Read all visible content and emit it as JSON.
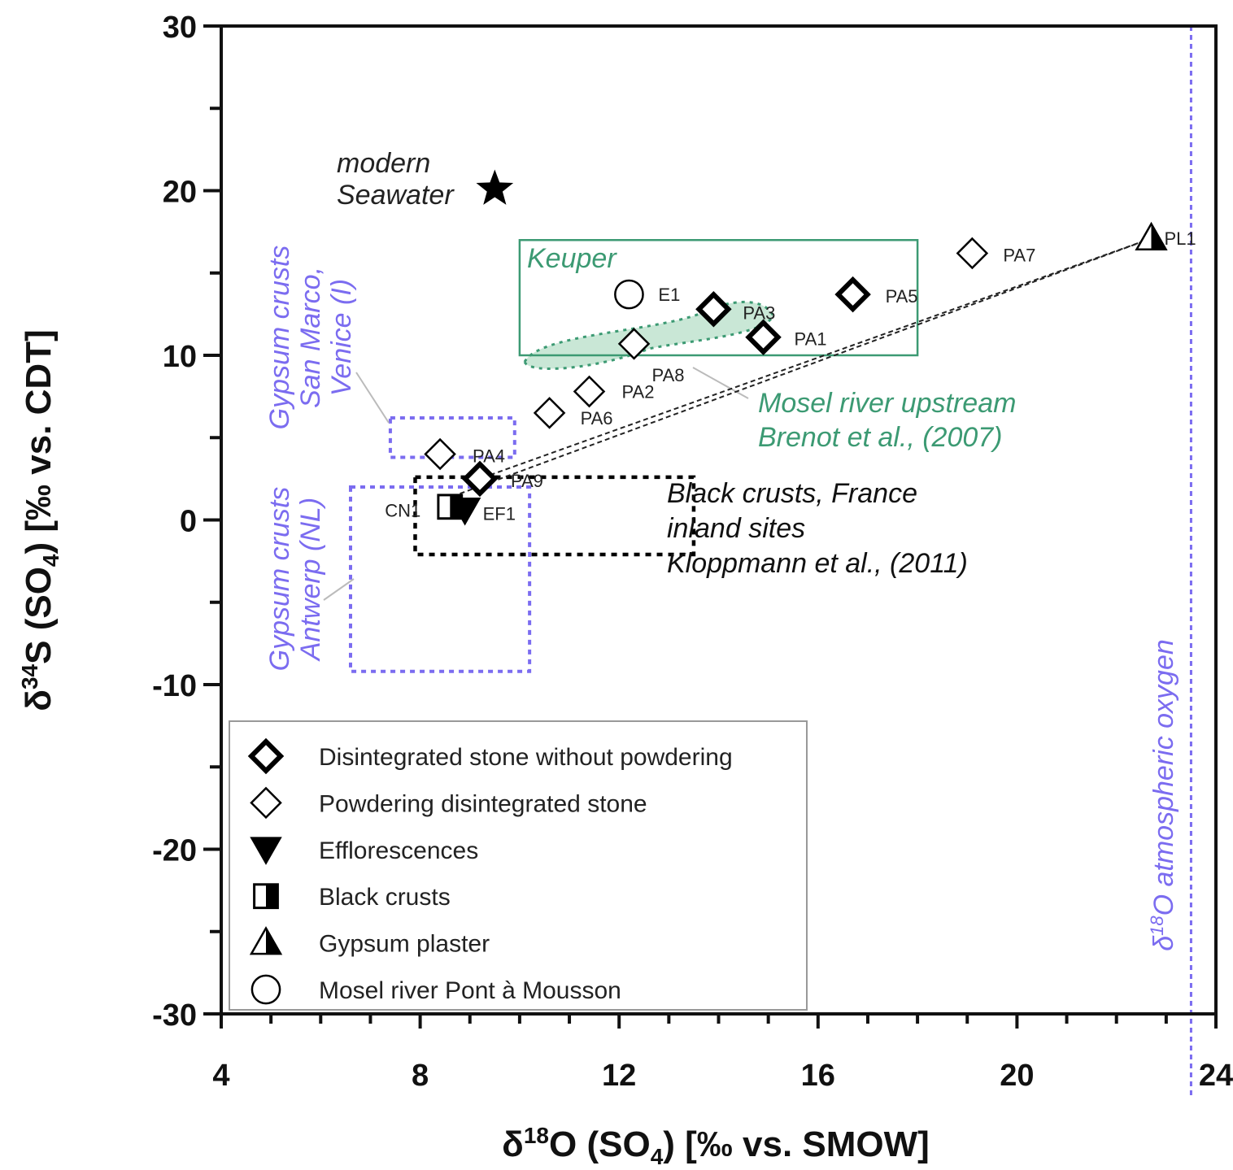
{
  "chart_data": {
    "type": "scatter",
    "xlabel": {
      "pre": "δ",
      "sup": "18",
      "main": "O (SO",
      "sub": "4",
      "post": ") [‰ vs. SMOW]"
    },
    "ylabel": {
      "pre": "δ",
      "sup": "34",
      "main": "S (SO",
      "sub": "4",
      "post": ") [‰ vs. CDT]"
    },
    "xlim": [
      4,
      24
    ],
    "ylim": [
      -30,
      30
    ],
    "x_ticks": [
      "4",
      "8",
      "12",
      "16",
      "20",
      "24"
    ],
    "y_ticks": [
      "-30",
      "-20",
      "-10",
      "0",
      "10",
      "20",
      "30"
    ],
    "x_major_values": [
      4,
      8,
      12,
      16,
      20,
      24
    ],
    "y_major_values": [
      -30,
      -20,
      -10,
      0,
      10,
      20,
      30
    ],
    "grid": false,
    "legend_position": "bottom-left",
    "legend": [
      {
        "marker": "diamond-bold",
        "label": "Disintegrated stone without powdering"
      },
      {
        "marker": "diamond",
        "label": "Powdering disintegrated stone"
      },
      {
        "marker": "triangle-down",
        "label": "Efflorescences"
      },
      {
        "marker": "half-square",
        "label": "Black crusts"
      },
      {
        "marker": "half-triangle",
        "label": "Gypsum plaster"
      },
      {
        "marker": "circle",
        "label": "Mosel river Pont à Mousson"
      }
    ],
    "series": [
      {
        "marker": "diamond-bold",
        "points": [
          {
            "label": "PA9",
            "x": 9.2,
            "y": 2.5
          },
          {
            "label": "PA3",
            "x": 13.9,
            "y": 12.8
          },
          {
            "label": "PA1",
            "x": 14.9,
            "y": 11.1
          },
          {
            "label": "PA5",
            "x": 16.7,
            "y": 13.7
          }
        ]
      },
      {
        "marker": "diamond",
        "points": [
          {
            "label": "PA4",
            "x": 8.4,
            "y": 4.0
          },
          {
            "label": "PA6",
            "x": 10.6,
            "y": 6.5
          },
          {
            "label": "PA2",
            "x": 11.4,
            "y": 7.8
          },
          {
            "label": "PA8",
            "x": 12.3,
            "y": 10.7
          },
          {
            "label": "PA7",
            "x": 19.1,
            "y": 16.2
          }
        ]
      },
      {
        "marker": "triangle-down",
        "points": [
          {
            "label": "EF1",
            "x": 8.9,
            "y": 0.6
          }
        ]
      },
      {
        "marker": "half-square",
        "points": [
          {
            "label": "CN1",
            "x": 8.6,
            "y": 0.8
          }
        ]
      },
      {
        "marker": "half-triangle",
        "points": [
          {
            "label": "PL1",
            "x": 22.7,
            "y": 17.1
          }
        ]
      },
      {
        "marker": "circle",
        "points": [
          {
            "label": "E1",
            "x": 12.2,
            "y": 13.7
          }
        ]
      },
      {
        "marker": "star",
        "points": [
          {
            "label": "",
            "x": 9.5,
            "y": 20.1
          }
        ]
      }
    ],
    "annotations": {
      "seawater": [
        "modern",
        "Seawater"
      ],
      "keuper": "Keuper",
      "mosel_upstream": [
        "Mosel river upstream",
        "Brenot et al., (2007)"
      ],
      "black_crusts": [
        "Black crusts, France",
        "inland sites",
        "Kloppmann et al., (2011)"
      ],
      "gypsum_venice": [
        "Gypsum crusts",
        "San Marco,",
        "Venice (I)"
      ],
      "gypsum_antwerp": [
        "Gypsum crusts",
        "Antwerp (NL)"
      ],
      "atmospheric": {
        "pre": "δ",
        "sup": "18",
        "main": "O atmospheric oxygen"
      }
    },
    "regions": {
      "keuper_box": {
        "x": [
          10,
          18
        ],
        "y": [
          10,
          17
        ]
      },
      "venice_box": {
        "x": [
          7.4,
          9.9
        ],
        "y": [
          3.8,
          6.2
        ]
      },
      "black_crusts_box": {
        "x": [
          7.9,
          13.5
        ],
        "y": [
          -2.1,
          2.6
        ]
      },
      "antwerp_box": {
        "x": [
          6.6,
          10.2
        ],
        "y": [
          -9.2,
          2.0
        ]
      },
      "atmospheric_line_x": 23.5
    },
    "mixing_lines": [
      {
        "from": [
          9.1,
          2.4
        ],
        "to": [
          22.7,
          17.1
        ]
      },
      {
        "from": [
          8.8,
          1.6
        ],
        "to": [
          22.7,
          17.1
        ]
      }
    ],
    "colors": {
      "axis": "#111111",
      "violet": "#7b6cf0",
      "green": "#3c9a73",
      "green_fill": "#bfe3cf",
      "black": "#000000"
    }
  }
}
